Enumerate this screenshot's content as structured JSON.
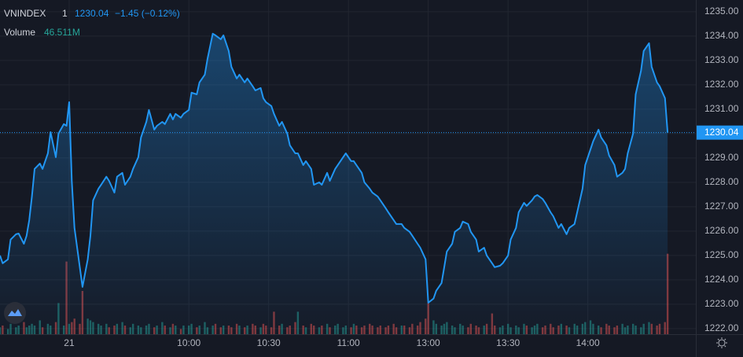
{
  "chart_data": {
    "type": "area",
    "header": {
      "interval": "1",
      "last": 1230.04,
      "change": "−1.45 (−0.12%)",
      "volume_label": "46.511M"
    },
    "x": [
      -26,
      -25,
      -23,
      -22,
      -20,
      -19,
      -17,
      -16,
      -15,
      -14,
      -13,
      -11,
      -10,
      -8,
      -7,
      -5,
      -4,
      -2,
      -1,
      0,
      1,
      2,
      4,
      5,
      7,
      8,
      9,
      11,
      12,
      14,
      15,
      17,
      18,
      20,
      21,
      23,
      24,
      26,
      27,
      29,
      30,
      32,
      33,
      35,
      36,
      38,
      39,
      40,
      42,
      43,
      45,
      46,
      48,
      49,
      51,
      52,
      54,
      55,
      57,
      58,
      60,
      61,
      63,
      64,
      66,
      67,
      69,
      70,
      72,
      73,
      74,
      76,
      77,
      79,
      80,
      82,
      83,
      85,
      86,
      88,
      89,
      91,
      92,
      94,
      95,
      97,
      98,
      100,
      101,
      103,
      104,
      106,
      107,
      108,
      110,
      111,
      113,
      114,
      116,
      117,
      119,
      120,
      122,
      123,
      125,
      126,
      128,
      129,
      131,
      132,
      134,
      135,
      137,
      138,
      140,
      141,
      142,
      144,
      145,
      147,
      148,
      150,
      151,
      153,
      154,
      156,
      157,
      159,
      160,
      162,
      163,
      165,
      166,
      168,
      169,
      171,
      172,
      174,
      175,
      176,
      178,
      179,
      181,
      182,
      184,
      185,
      187,
      188,
      190,
      191,
      193,
      194,
      196,
      197,
      199,
      200,
      202,
      203,
      205,
      206,
      208,
      209,
      210,
      212,
      213,
      215,
      216,
      218,
      219,
      221,
      222,
      224,
      225
    ],
    "series": [
      {
        "name": "VNINDEX",
        "color": "#2196f3",
        "values": [
          1225.0,
          1224.68,
          1224.84,
          1225.65,
          1225.87,
          1225.9,
          1225.48,
          1225.81,
          1226.45,
          1227.42,
          1228.55,
          1228.77,
          1228.55,
          1229.19,
          1230.06,
          1229.03,
          1230.0,
          1230.39,
          1230.32,
          1231.29,
          1228.06,
          1226.13,
          1224.52,
          1223.71,
          1224.84,
          1225.81,
          1227.26,
          1227.74,
          1227.9,
          1228.23,
          1228.06,
          1227.58,
          1228.23,
          1228.39,
          1227.9,
          1228.23,
          1228.55,
          1229.03,
          1229.84,
          1230.48,
          1230.97,
          1230.16,
          1230.32,
          1230.48,
          1230.39,
          1230.81,
          1230.58,
          1230.81,
          1230.65,
          1230.81,
          1230.97,
          1231.68,
          1231.61,
          1232.1,
          1232.42,
          1233.06,
          1234.1,
          1234.03,
          1233.87,
          1234.03,
          1233.39,
          1232.74,
          1232.26,
          1232.42,
          1232.1,
          1232.26,
          1231.94,
          1231.77,
          1231.87,
          1231.45,
          1231.29,
          1231.13,
          1230.81,
          1230.32,
          1230.48,
          1230.0,
          1229.52,
          1229.19,
          1229.19,
          1228.71,
          1228.87,
          1228.55,
          1227.9,
          1228.0,
          1227.9,
          1228.39,
          1228.06,
          1228.55,
          1228.71,
          1229.03,
          1229.19,
          1228.87,
          1228.87,
          1228.71,
          1228.39,
          1228.0,
          1227.74,
          1227.58,
          1227.42,
          1227.26,
          1226.94,
          1226.77,
          1226.45,
          1226.29,
          1226.29,
          1226.13,
          1225.97,
          1225.81,
          1225.48,
          1225.32,
          1224.84,
          1223.06,
          1223.23,
          1223.55,
          1223.87,
          1224.52,
          1225.16,
          1225.48,
          1225.97,
          1226.13,
          1226.39,
          1226.29,
          1225.97,
          1225.65,
          1225.16,
          1225.32,
          1225.0,
          1224.68,
          1224.52,
          1224.58,
          1224.68,
          1225.0,
          1225.65,
          1226.13,
          1226.77,
          1227.16,
          1227.03,
          1227.26,
          1227.42,
          1227.48,
          1227.32,
          1227.16,
          1226.77,
          1226.61,
          1226.13,
          1226.29,
          1225.87,
          1226.13,
          1226.29,
          1226.77,
          1227.74,
          1228.71,
          1229.35,
          1229.68,
          1230.16,
          1229.84,
          1229.52,
          1229.1,
          1228.71,
          1228.23,
          1228.39,
          1228.55,
          1229.19,
          1230.0,
          1231.61,
          1232.58,
          1233.39,
          1233.71,
          1232.74,
          1232.1,
          1231.94,
          1231.45,
          1230.04
        ]
      }
    ],
    "volume": {
      "name": "Volume",
      "up_color": "#26a69a",
      "down_color": "#ef5350",
      "ylim": [
        0,
        100
      ],
      "values": [
        4,
        5,
        3,
        6,
        4,
        5,
        7,
        4,
        5,
        6,
        5,
        8,
        4,
        6,
        5,
        7,
        18,
        5,
        42,
        6,
        7,
        9,
        6,
        25,
        9,
        8,
        7,
        6,
        5,
        6,
        4,
        5,
        6,
        7,
        5,
        4,
        6,
        5,
        4,
        5,
        6,
        4,
        5,
        7,
        5,
        4,
        6,
        5,
        3,
        5,
        5,
        6,
        4,
        5,
        7,
        4,
        5,
        6,
        4,
        5,
        5,
        4,
        6,
        5,
        4,
        5,
        6,
        5,
        4,
        6,
        5,
        4,
        13,
        5,
        6,
        4,
        5,
        7,
        13,
        5,
        4,
        6,
        5,
        4,
        5,
        6,
        4,
        5,
        6,
        4,
        5,
        4,
        6,
        5,
        4,
        5,
        6,
        5,
        4,
        5,
        4,
        5,
        6,
        4,
        5,
        5,
        4,
        6,
        5,
        7,
        9,
        18,
        8,
        6,
        5,
        6,
        7,
        5,
        4,
        6,
        5,
        4,
        6,
        5,
        4,
        5,
        6,
        12,
        5,
        4,
        5,
        6,
        4,
        5,
        4,
        6,
        5,
        4,
        5,
        6,
        4,
        5,
        6,
        4,
        5,
        6,
        5,
        4,
        6,
        5,
        6,
        7,
        8,
        6,
        5,
        4,
        6,
        5,
        4,
        5,
        6,
        4,
        5,
        6,
        5,
        4,
        6,
        7,
        6,
        5,
        6,
        7,
        46.511
      ]
    },
    "xlim": [
      -26,
      235.6
    ],
    "ylim": [
      1221.77,
      1235.48
    ],
    "xticks": [
      {
        "value": 0,
        "label": "21"
      },
      {
        "value": 45,
        "label": "10:00"
      },
      {
        "value": 75,
        "label": "10:30"
      },
      {
        "value": 105,
        "label": "11:00"
      },
      {
        "value": 135,
        "label": "13:00"
      },
      {
        "value": 165,
        "label": "13:30"
      },
      {
        "value": 195,
        "label": "14:00"
      }
    ],
    "yticks": [
      {
        "value": 1222,
        "label": "1222.00"
      },
      {
        "value": 1223,
        "label": "1223.00"
      },
      {
        "value": 1224,
        "label": "1224.00"
      },
      {
        "value": 1225,
        "label": "1225.00"
      },
      {
        "value": 1226,
        "label": "1226.00"
      },
      {
        "value": 1227,
        "label": "1227.00"
      },
      {
        "value": 1228,
        "label": "1228.00"
      },
      {
        "value": 1229,
        "label": "1229.00"
      },
      {
        "value": 1230,
        "label": "1230.00"
      },
      {
        "value": 1231,
        "label": "1231.00"
      },
      {
        "value": 1232,
        "label": "1232.00"
      },
      {
        "value": 1233,
        "label": "1233.00"
      },
      {
        "value": 1234,
        "label": "1234.00"
      },
      {
        "value": 1235,
        "label": "1235.00"
      }
    ],
    "grid": true
  }
}
